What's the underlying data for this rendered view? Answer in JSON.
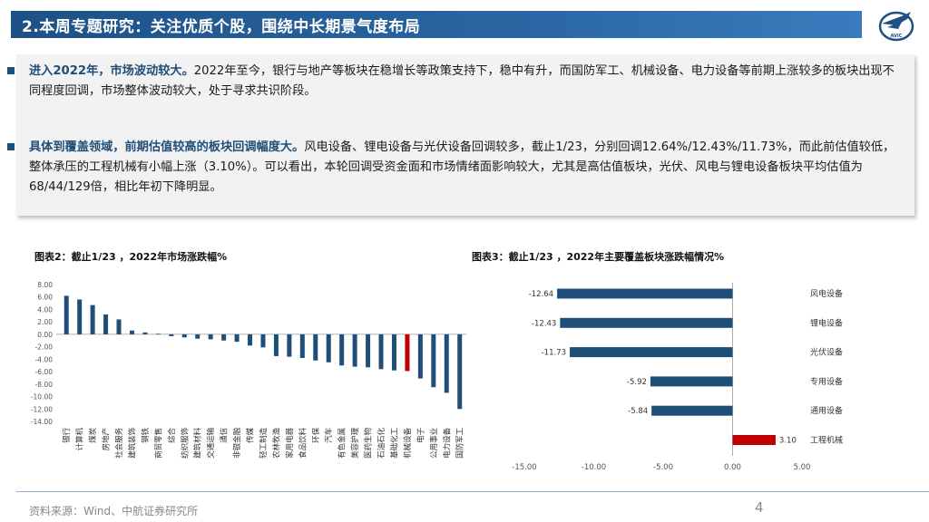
{
  "header": {
    "title": "2.本周专题研究：关注优质个股，围绕中长期景气度布局",
    "logo_text": "AVIC"
  },
  "paragraphs": [
    {
      "lead": "进入2022年，市场波动较大。",
      "text": "2022年至今，银行与地产等板块在稳增长等政策支持下，稳中有升，而国防军工、机械设备、电力设备等前期上涨较多的板块出现不同程度回调，市场整体波动较大，处于寻求共识阶段。"
    },
    {
      "lead": "具体到覆盖领域，前期估值较高的板块回调幅度大。",
      "text": "风电设备、锂电设备与光伏设备回调较多，截止1/23，分别回调12.64%/12.43%/11.73%，而此前估值较低，整体承压的工程机械有小幅上涨（3.10%）。可以看出，本轮回调受资金面和市场情绪面影响较大，尤其是高估值板块，光伏、风电与锂电设备板块平均估值为68/44/129倍，相比年初下降明显。"
    }
  ],
  "colors": {
    "primary": "#1f4e79",
    "highlight": "#c00000"
  },
  "chart_data": [
    {
      "type": "bar",
      "title": "图表2：截止1/23 ，2022年市场涨跌幅%",
      "categories": [
        "银行",
        "计算机",
        "煤炭",
        "房地产",
        "社会服务",
        "建筑装饰",
        "钢铁",
        "商贸零售",
        "综合",
        "纺织服饰",
        "建筑材料",
        "交通运输",
        "通信",
        "非银金融",
        "传媒",
        "轻工制造",
        "农林牧渔",
        "家用电器",
        "食品饮料",
        "环保",
        "汽车",
        "有色金属",
        "美容护理",
        "医药生物",
        "石油石化",
        "基础化工",
        "机械设备",
        "电子",
        "公用事业",
        "电力设备",
        "国防军工"
      ],
      "values": [
        6.2,
        5.6,
        4.7,
        3.2,
        2.4,
        0.6,
        0.3,
        0.1,
        -0.3,
        -0.5,
        -0.7,
        -0.8,
        -1.0,
        -1.2,
        -1.8,
        -2.1,
        -3.5,
        -3.6,
        -3.8,
        -4.2,
        -4.5,
        -5.0,
        -5.2,
        -5.3,
        -5.6,
        -5.8,
        -5.9,
        -7.1,
        -8.5,
        -9.4,
        -12.0
      ],
      "highlight_category": "机械设备",
      "yticks": [
        "8.00",
        "6.00",
        "4.00",
        "2.00",
        "0.00",
        "-2.00",
        "-4.00",
        "-6.00",
        "-8.00",
        "-10.00",
        "-12.00",
        "-14.00"
      ],
      "ylim": [
        -14,
        8
      ]
    },
    {
      "type": "bar",
      "orientation": "horizontal",
      "title": "图表3：截止1/23 ，2022年主要覆盖板块涨跌幅情况%",
      "categories": [
        "风电设备",
        "锂电设备",
        "光伏设备",
        "专用设备",
        "通用设备",
        "工程机械"
      ],
      "values": [
        -12.64,
        -12.43,
        -11.73,
        -5.92,
        -5.84,
        3.1
      ],
      "value_labels": [
        "-12.64",
        "-12.43",
        "-11.73",
        "-5.92",
        "-5.84",
        "3.10"
      ],
      "highlight_category": "工程机械",
      "xticks": [
        "-15.00",
        "-10.00",
        "-5.00",
        "0.00",
        "5.00"
      ],
      "xlim": [
        -15,
        5
      ]
    }
  ],
  "footer": {
    "source": "资料来源：Wind、中航证券研究所",
    "page": "4"
  }
}
